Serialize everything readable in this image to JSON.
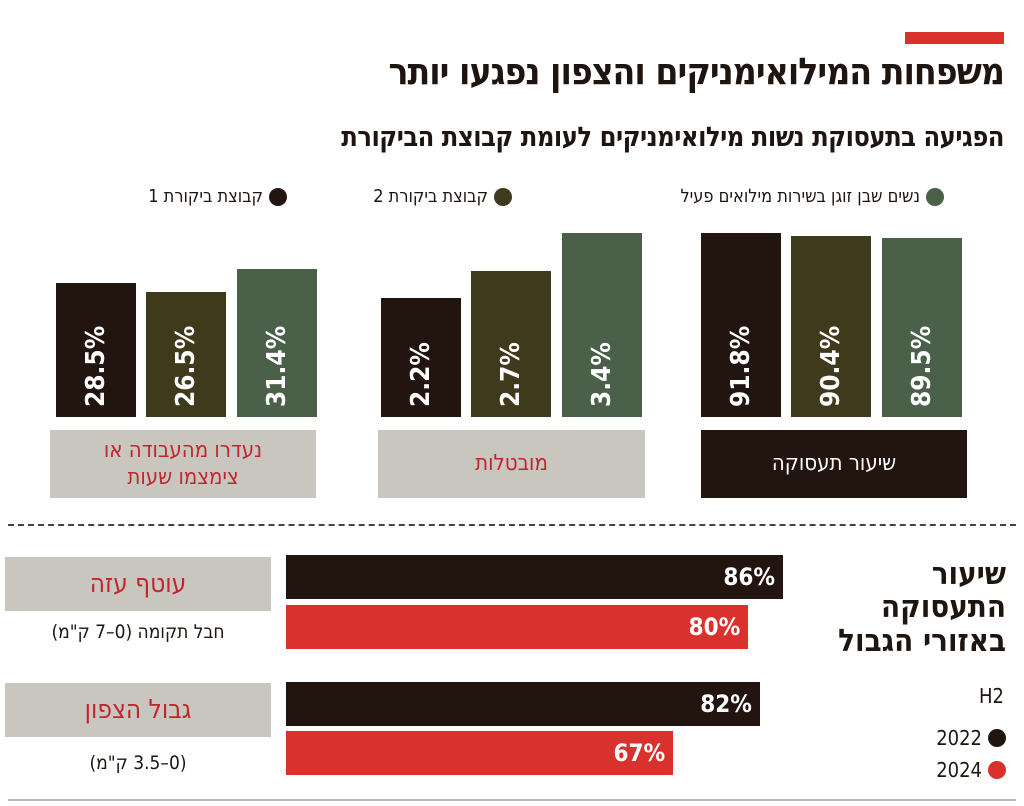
{
  "header": {
    "title": "משפחות המילואימניקים והצפון נפגעו יותר",
    "subtitle": "הפגיעה בתעסוקת נשות מילואימניקים לעומת קבוצת הביקורת"
  },
  "colors": {
    "accent": "#d9322e",
    "control1": "#221510",
    "control2": "#3f3a1c",
    "reservist_wives": "#4a6049",
    "year2022": "#221510",
    "year2024": "#d9322e",
    "label_gray": "#c9c6c0",
    "label_red": "#c0262b"
  },
  "chart_data": [
    {
      "type": "bar",
      "legend": [
        {
          "name": "נשים שבן זוגן בשירות מילואים פעיל",
          "color": "#4a6049"
        },
        {
          "name": "קבוצת ביקורת 2",
          "color": "#3f3a1c"
        },
        {
          "name": "קבוצת ביקורת 1",
          "color": "#221510"
        }
      ],
      "legend_placement": "top",
      "categories": [
        "שיעור תעסוקה",
        "מובטלות",
        "נעדרו מהעבודה או צימצמו  שעות"
      ],
      "category_lines": [
        [
          "שיעור תעסוקה"
        ],
        [
          "מובטלות"
        ],
        [
          "נעדרו מהעבודה או",
          "צימצמו  שעות"
        ]
      ],
      "series": [
        {
          "name": "קבוצת ביקורת 1",
          "values": [
            91.8,
            2.2,
            28.5
          ],
          "labels": [
            "91.8%",
            "2.2%",
            "28.5%"
          ]
        },
        {
          "name": "קבוצת ביקורת 2",
          "values": [
            90.4,
            2.7,
            26.5
          ],
          "labels": [
            "90.4%",
            "2.7%",
            "26.5%"
          ]
        },
        {
          "name": "נשים שבן זוגן בשירות מילואים פעיל",
          "values": [
            89.5,
            3.4,
            31.4
          ],
          "labels": [
            "89.5%",
            "3.4%",
            "31.4%"
          ]
        }
      ],
      "grid": false
    },
    {
      "type": "bar",
      "orientation": "horizontal",
      "title_lines": [
        "שיעור",
        "התעסוקה",
        "באזורי הגבול"
      ],
      "period": "H2",
      "legend": [
        {
          "name": "2022",
          "color": "#221510"
        },
        {
          "name": "2024",
          "color": "#d9322e"
        }
      ],
      "categories": [
        {
          "name": "עוטף עזה",
          "sub": "חבל תקומה (0–7 ק\"מ)"
        },
        {
          "name": "גבול הצפון",
          "sub": "(0–3.5 ק\"מ)"
        }
      ],
      "series": [
        {
          "name": "2022",
          "values": [
            86,
            82
          ],
          "labels": [
            "86%",
            "82%"
          ]
        },
        {
          "name": "2024",
          "values": [
            80,
            67
          ],
          "labels": [
            "80%",
            "67%"
          ]
        }
      ],
      "grid": false
    }
  ]
}
